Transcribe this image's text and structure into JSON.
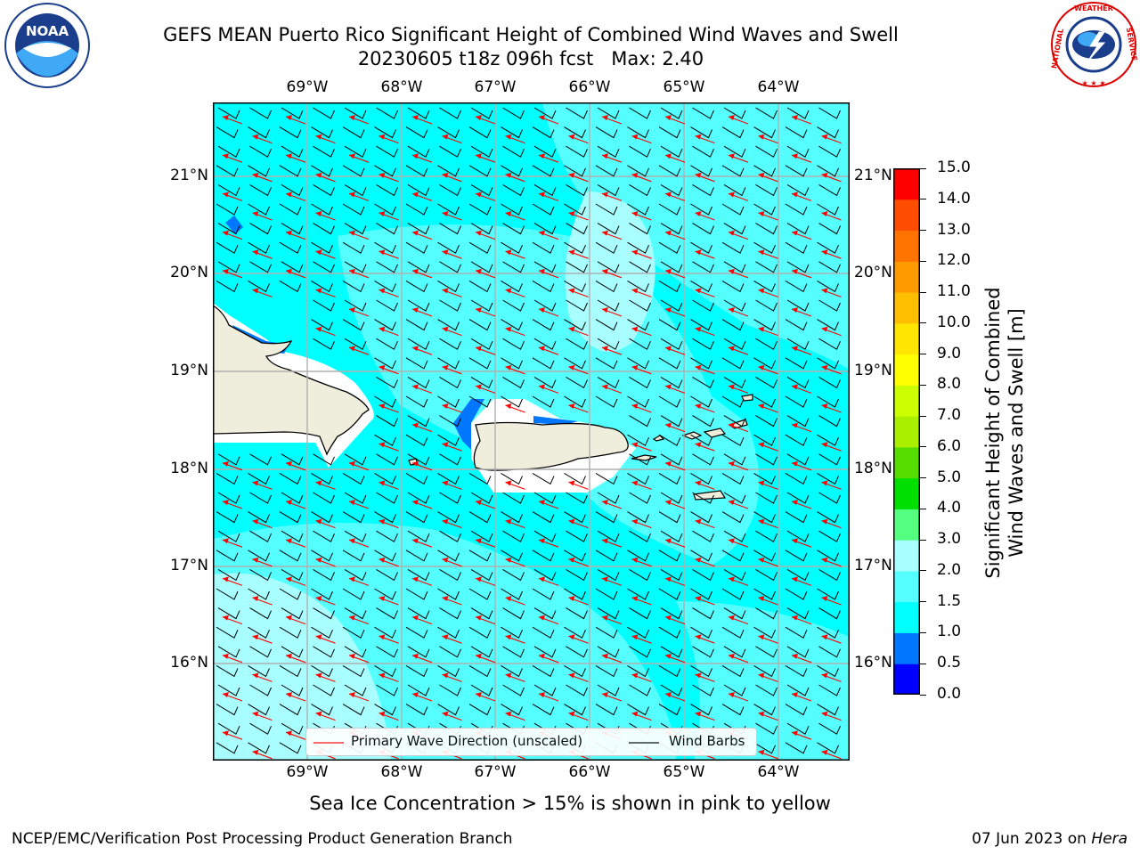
{
  "title": {
    "line1": "GEFS MEAN Puerto Rico Significant Height of Combined Wind Waves and Swell",
    "line2": "20230605 t18z 096h fcst   Max: 2.40"
  },
  "logos": {
    "noaa_text": "NOAA",
    "nws_text": "NATIONAL WEATHER SERVICE"
  },
  "map": {
    "lon_labels": [
      "69°W",
      "68°W",
      "67°W",
      "66°W",
      "65°W",
      "64°W"
    ],
    "lat_labels": [
      "21°N",
      "20°N",
      "19°N",
      "18°N",
      "17°N",
      "16°N"
    ],
    "colors": {
      "ocean_base": "#00ffff",
      "ocean_light": "#55ffff",
      "ocean_lighter": "#a9ffff",
      "land": "#efeddc",
      "grid": "#b0b0b0",
      "wave_arrow": "#ff0000",
      "wind_barb": "#000000"
    }
  },
  "legend": {
    "primary_wave_label": "Primary Wave Direction (unscaled)",
    "wind_barbs_label": "Wind Barbs"
  },
  "colorbar": {
    "label_line1": "Significant Height of Combined",
    "label_line2": "Wind Waves and Swell [m]",
    "ticks": [
      "0.0",
      "0.5",
      "1.0",
      "1.5",
      "2.0",
      "3.0",
      "4.0",
      "5.0",
      "6.0",
      "7.0",
      "8.0",
      "9.0",
      "10.0",
      "11.0",
      "12.0",
      "13.0",
      "14.0",
      "15.0"
    ],
    "colors": [
      "#0000ff",
      "#0077ff",
      "#00ffff",
      "#55ffff",
      "#a9ffff",
      "#55ff80",
      "#00e000",
      "#55dd00",
      "#aaee00",
      "#ccff00",
      "#ffff00",
      "#ffe600",
      "#ffbf00",
      "#ff9900",
      "#ff7300",
      "#ff4d00",
      "#ff0000"
    ]
  },
  "sea_ice_note": "Sea Ice Concentration > 15% is shown in pink to yellow",
  "footer": {
    "left": "NCEP/EMC/Verification Post Processing Product Generation Branch",
    "right_prefix": "07 Jun 2023 on ",
    "right_host": "Hera"
  }
}
